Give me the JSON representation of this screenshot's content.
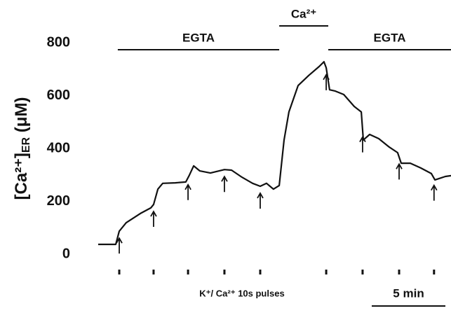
{
  "chart_data": {
    "type": "line",
    "ylabel": [
      "[Ca²⁺]",
      "ER",
      " (μM)"
    ],
    "xlabel": "K⁺/ Ca²⁺ 10s pulses",
    "xlim": [
      0,
      24
    ],
    "ylim": [
      0,
      800
    ],
    "yticks": [
      0,
      200,
      400,
      600,
      800
    ],
    "color": "#111111",
    "x": [
      0,
      1.19,
      1.43,
      1.9,
      2.86,
      3.57,
      3.76,
      4.05,
      4.38,
      5.24,
      5.95,
      6.19,
      6.48,
      6.9,
      7.62,
      8.57,
      9.05,
      9.76,
      10.48,
      11,
      11.43,
      11.9,
      12.29,
      12.62,
      12.95,
      13.57,
      14.29,
      15,
      15.33,
      15.48,
      15.71,
      16.1,
      16.67,
      17.38,
      17.86,
      18,
      18.43,
      19.05,
      19.76,
      20.33,
      20.57,
      21.19,
      21.9,
      22.62,
      22.86,
      23.57,
      23.95
    ],
    "values": [
      37,
      37,
      87,
      119,
      154,
      175,
      188,
      246,
      268,
      270,
      273,
      299,
      334,
      315,
      307,
      320,
      318,
      291,
      268,
      257,
      268,
      246,
      260,
      432,
      538,
      638,
      676,
      710,
      728,
      705,
      622,
      617,
      604,
      559,
      538,
      432,
      453,
      437,
      405,
      384,
      344,
      344,
      326,
      305,
      281,
      294,
      297
    ],
    "pulses": [
      1.43,
      3.76,
      6.1,
      8.57,
      11,
      15.48,
      17.95,
      20.43,
      22.8
    ],
    "periods": [
      {
        "label": "EGTA",
        "x": [
          1.33,
          12.29
        ],
        "level": 1
      },
      {
        "label": "Ca²⁺",
        "x": [
          12.29,
          15.62
        ],
        "level": 2
      },
      {
        "label": "EGTA",
        "x": [
          15.62,
          24
        ],
        "level": 1
      }
    ],
    "scalebar": {
      "label": "5 min",
      "length": 5
    }
  }
}
